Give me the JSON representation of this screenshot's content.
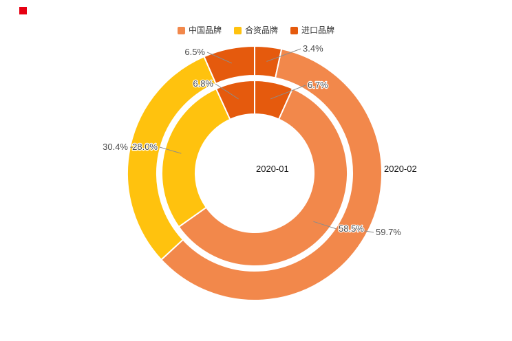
{
  "page": {
    "background": "#ffffff",
    "brand_mark_color": "#e60012"
  },
  "chart_data": {
    "type": "pie",
    "variant": "nested-donut",
    "title": "",
    "legend": {
      "position": "top",
      "items": [
        {
          "label": "中国品牌",
          "color": "#F2884B"
        },
        {
          "label": "合资品牌",
          "color": "#FFC20E"
        },
        {
          "label": "进口品牌",
          "color": "#E55A0D"
        }
      ]
    },
    "label_color": "#4d4d4d",
    "leader_line_color": "#8c8c8c",
    "rings": [
      {
        "name": "2020-01",
        "position": "inner",
        "name_label": "2020-01",
        "segments": [
          {
            "category": "进口品牌",
            "value": 6.7,
            "label": "6.7%"
          },
          {
            "category": "中国品牌",
            "value": 58.5,
            "label": "58.5%"
          },
          {
            "category": "合资品牌",
            "value": 28.0,
            "label": "28.0%"
          },
          {
            "category": "进口品牌",
            "value": 6.8,
            "label": "6.8%"
          }
        ]
      },
      {
        "name": "2020-02",
        "position": "outer",
        "name_label": "2020-02",
        "segments": [
          {
            "category": "进口品牌",
            "value": 3.4,
            "label": "3.4%"
          },
          {
            "category": "中国品牌",
            "value": 59.7,
            "label": "59.7%"
          },
          {
            "category": "合资品牌",
            "value": 30.4,
            "label": "30.4%"
          },
          {
            "category": "进口品牌",
            "value": 6.5,
            "label": "6.5%"
          }
        ]
      }
    ]
  }
}
